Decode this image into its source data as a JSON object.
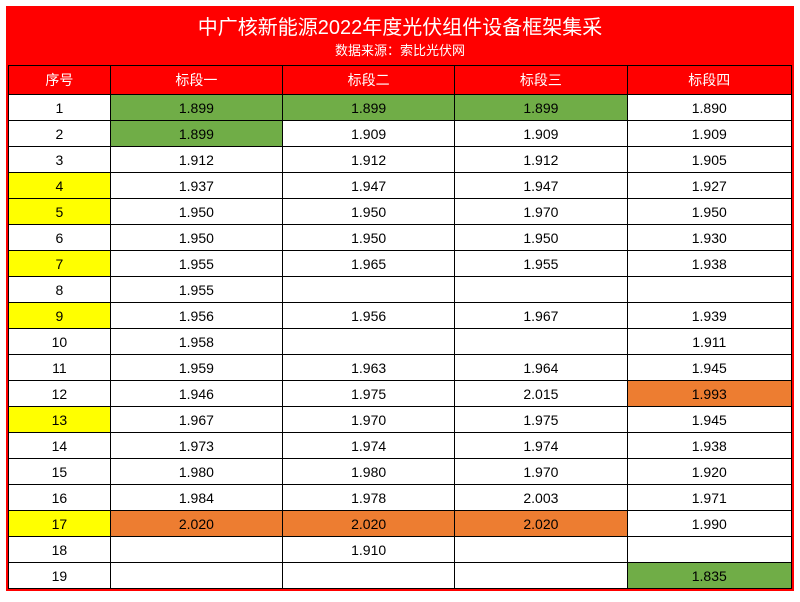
{
  "title": "中广核新能源2022年度光伏组件设备框架集采",
  "subtitle": "数据来源：索比光伏网",
  "colors": {
    "header_bg": "#ff0000",
    "header_fg": "#ffffff",
    "cell_bg": "#ffffff",
    "cell_fg": "#000000",
    "border": "#000000",
    "highlight_yellow": "#ffff00",
    "highlight_green": "#70ad47",
    "highlight_orange": "#ed7d31"
  },
  "columns": [
    "序号",
    "标段一",
    "标段二",
    "标段三",
    "标段四"
  ],
  "rows": [
    {
      "seq": "1",
      "seq_hl": null,
      "c1": "1.899",
      "c1_hl": "green",
      "c2": "1.899",
      "c2_hl": "green",
      "c3": "1.899",
      "c3_hl": "green",
      "c4": "1.890",
      "c4_hl": null
    },
    {
      "seq": "2",
      "seq_hl": null,
      "c1": "1.899",
      "c1_hl": "green",
      "c2": "1.909",
      "c2_hl": null,
      "c3": "1.909",
      "c3_hl": null,
      "c4": "1.909",
      "c4_hl": null
    },
    {
      "seq": "3",
      "seq_hl": null,
      "c1": "1.912",
      "c1_hl": null,
      "c2": "1.912",
      "c2_hl": null,
      "c3": "1.912",
      "c3_hl": null,
      "c4": "1.905",
      "c4_hl": null
    },
    {
      "seq": "4",
      "seq_hl": "yellow",
      "c1": "1.937",
      "c1_hl": null,
      "c2": "1.947",
      "c2_hl": null,
      "c3": "1.947",
      "c3_hl": null,
      "c4": "1.927",
      "c4_hl": null
    },
    {
      "seq": "5",
      "seq_hl": "yellow",
      "c1": "1.950",
      "c1_hl": null,
      "c2": "1.950",
      "c2_hl": null,
      "c3": "1.970",
      "c3_hl": null,
      "c4": "1.950",
      "c4_hl": null
    },
    {
      "seq": "6",
      "seq_hl": null,
      "c1": "1.950",
      "c1_hl": null,
      "c2": "1.950",
      "c2_hl": null,
      "c3": "1.950",
      "c3_hl": null,
      "c4": "1.930",
      "c4_hl": null
    },
    {
      "seq": "7",
      "seq_hl": "yellow",
      "c1": "1.955",
      "c1_hl": null,
      "c2": "1.965",
      "c2_hl": null,
      "c3": "1.955",
      "c3_hl": null,
      "c4": "1.938",
      "c4_hl": null
    },
    {
      "seq": "8",
      "seq_hl": null,
      "c1": "1.955",
      "c1_hl": null,
      "c2": "",
      "c2_hl": null,
      "c3": "",
      "c3_hl": null,
      "c4": "",
      "c4_hl": null
    },
    {
      "seq": "9",
      "seq_hl": "yellow",
      "c1": "1.956",
      "c1_hl": null,
      "c2": "1.956",
      "c2_hl": null,
      "c3": "1.967",
      "c3_hl": null,
      "c4": "1.939",
      "c4_hl": null
    },
    {
      "seq": "10",
      "seq_hl": null,
      "c1": "1.958",
      "c1_hl": null,
      "c2": "",
      "c2_hl": null,
      "c3": "",
      "c3_hl": null,
      "c4": "1.911",
      "c4_hl": null
    },
    {
      "seq": "11",
      "seq_hl": null,
      "c1": "1.959",
      "c1_hl": null,
      "c2": "1.963",
      "c2_hl": null,
      "c3": "1.964",
      "c3_hl": null,
      "c4": "1.945",
      "c4_hl": null
    },
    {
      "seq": "12",
      "seq_hl": null,
      "c1": "1.946",
      "c1_hl": null,
      "c2": "1.975",
      "c2_hl": null,
      "c3": "2.015",
      "c3_hl": null,
      "c4": "1.993",
      "c4_hl": "orange"
    },
    {
      "seq": "13",
      "seq_hl": "yellow",
      "c1": "1.967",
      "c1_hl": null,
      "c2": "1.970",
      "c2_hl": null,
      "c3": "1.975",
      "c3_hl": null,
      "c4": "1.945",
      "c4_hl": null
    },
    {
      "seq": "14",
      "seq_hl": null,
      "c1": "1.973",
      "c1_hl": null,
      "c2": "1.974",
      "c2_hl": null,
      "c3": "1.974",
      "c3_hl": null,
      "c4": "1.938",
      "c4_hl": null
    },
    {
      "seq": "15",
      "seq_hl": null,
      "c1": "1.980",
      "c1_hl": null,
      "c2": "1.980",
      "c2_hl": null,
      "c3": "1.970",
      "c3_hl": null,
      "c4": "1.920",
      "c4_hl": null
    },
    {
      "seq": "16",
      "seq_hl": null,
      "c1": "1.984",
      "c1_hl": null,
      "c2": "1.978",
      "c2_hl": null,
      "c3": "2.003",
      "c3_hl": null,
      "c4": "1.971",
      "c4_hl": null
    },
    {
      "seq": "17",
      "seq_hl": "yellow",
      "c1": "2.020",
      "c1_hl": "orange",
      "c2": "2.020",
      "c2_hl": "orange",
      "c3": "2.020",
      "c3_hl": "orange",
      "c4": "1.990",
      "c4_hl": null
    },
    {
      "seq": "18",
      "seq_hl": null,
      "c1": "",
      "c1_hl": null,
      "c2": "1.910",
      "c2_hl": null,
      "c3": "",
      "c3_hl": null,
      "c4": "",
      "c4_hl": null
    },
    {
      "seq": "19",
      "seq_hl": null,
      "c1": "",
      "c1_hl": null,
      "c2": "",
      "c2_hl": null,
      "c3": "",
      "c3_hl": null,
      "c4": "1.835",
      "c4_hl": "green"
    }
  ]
}
